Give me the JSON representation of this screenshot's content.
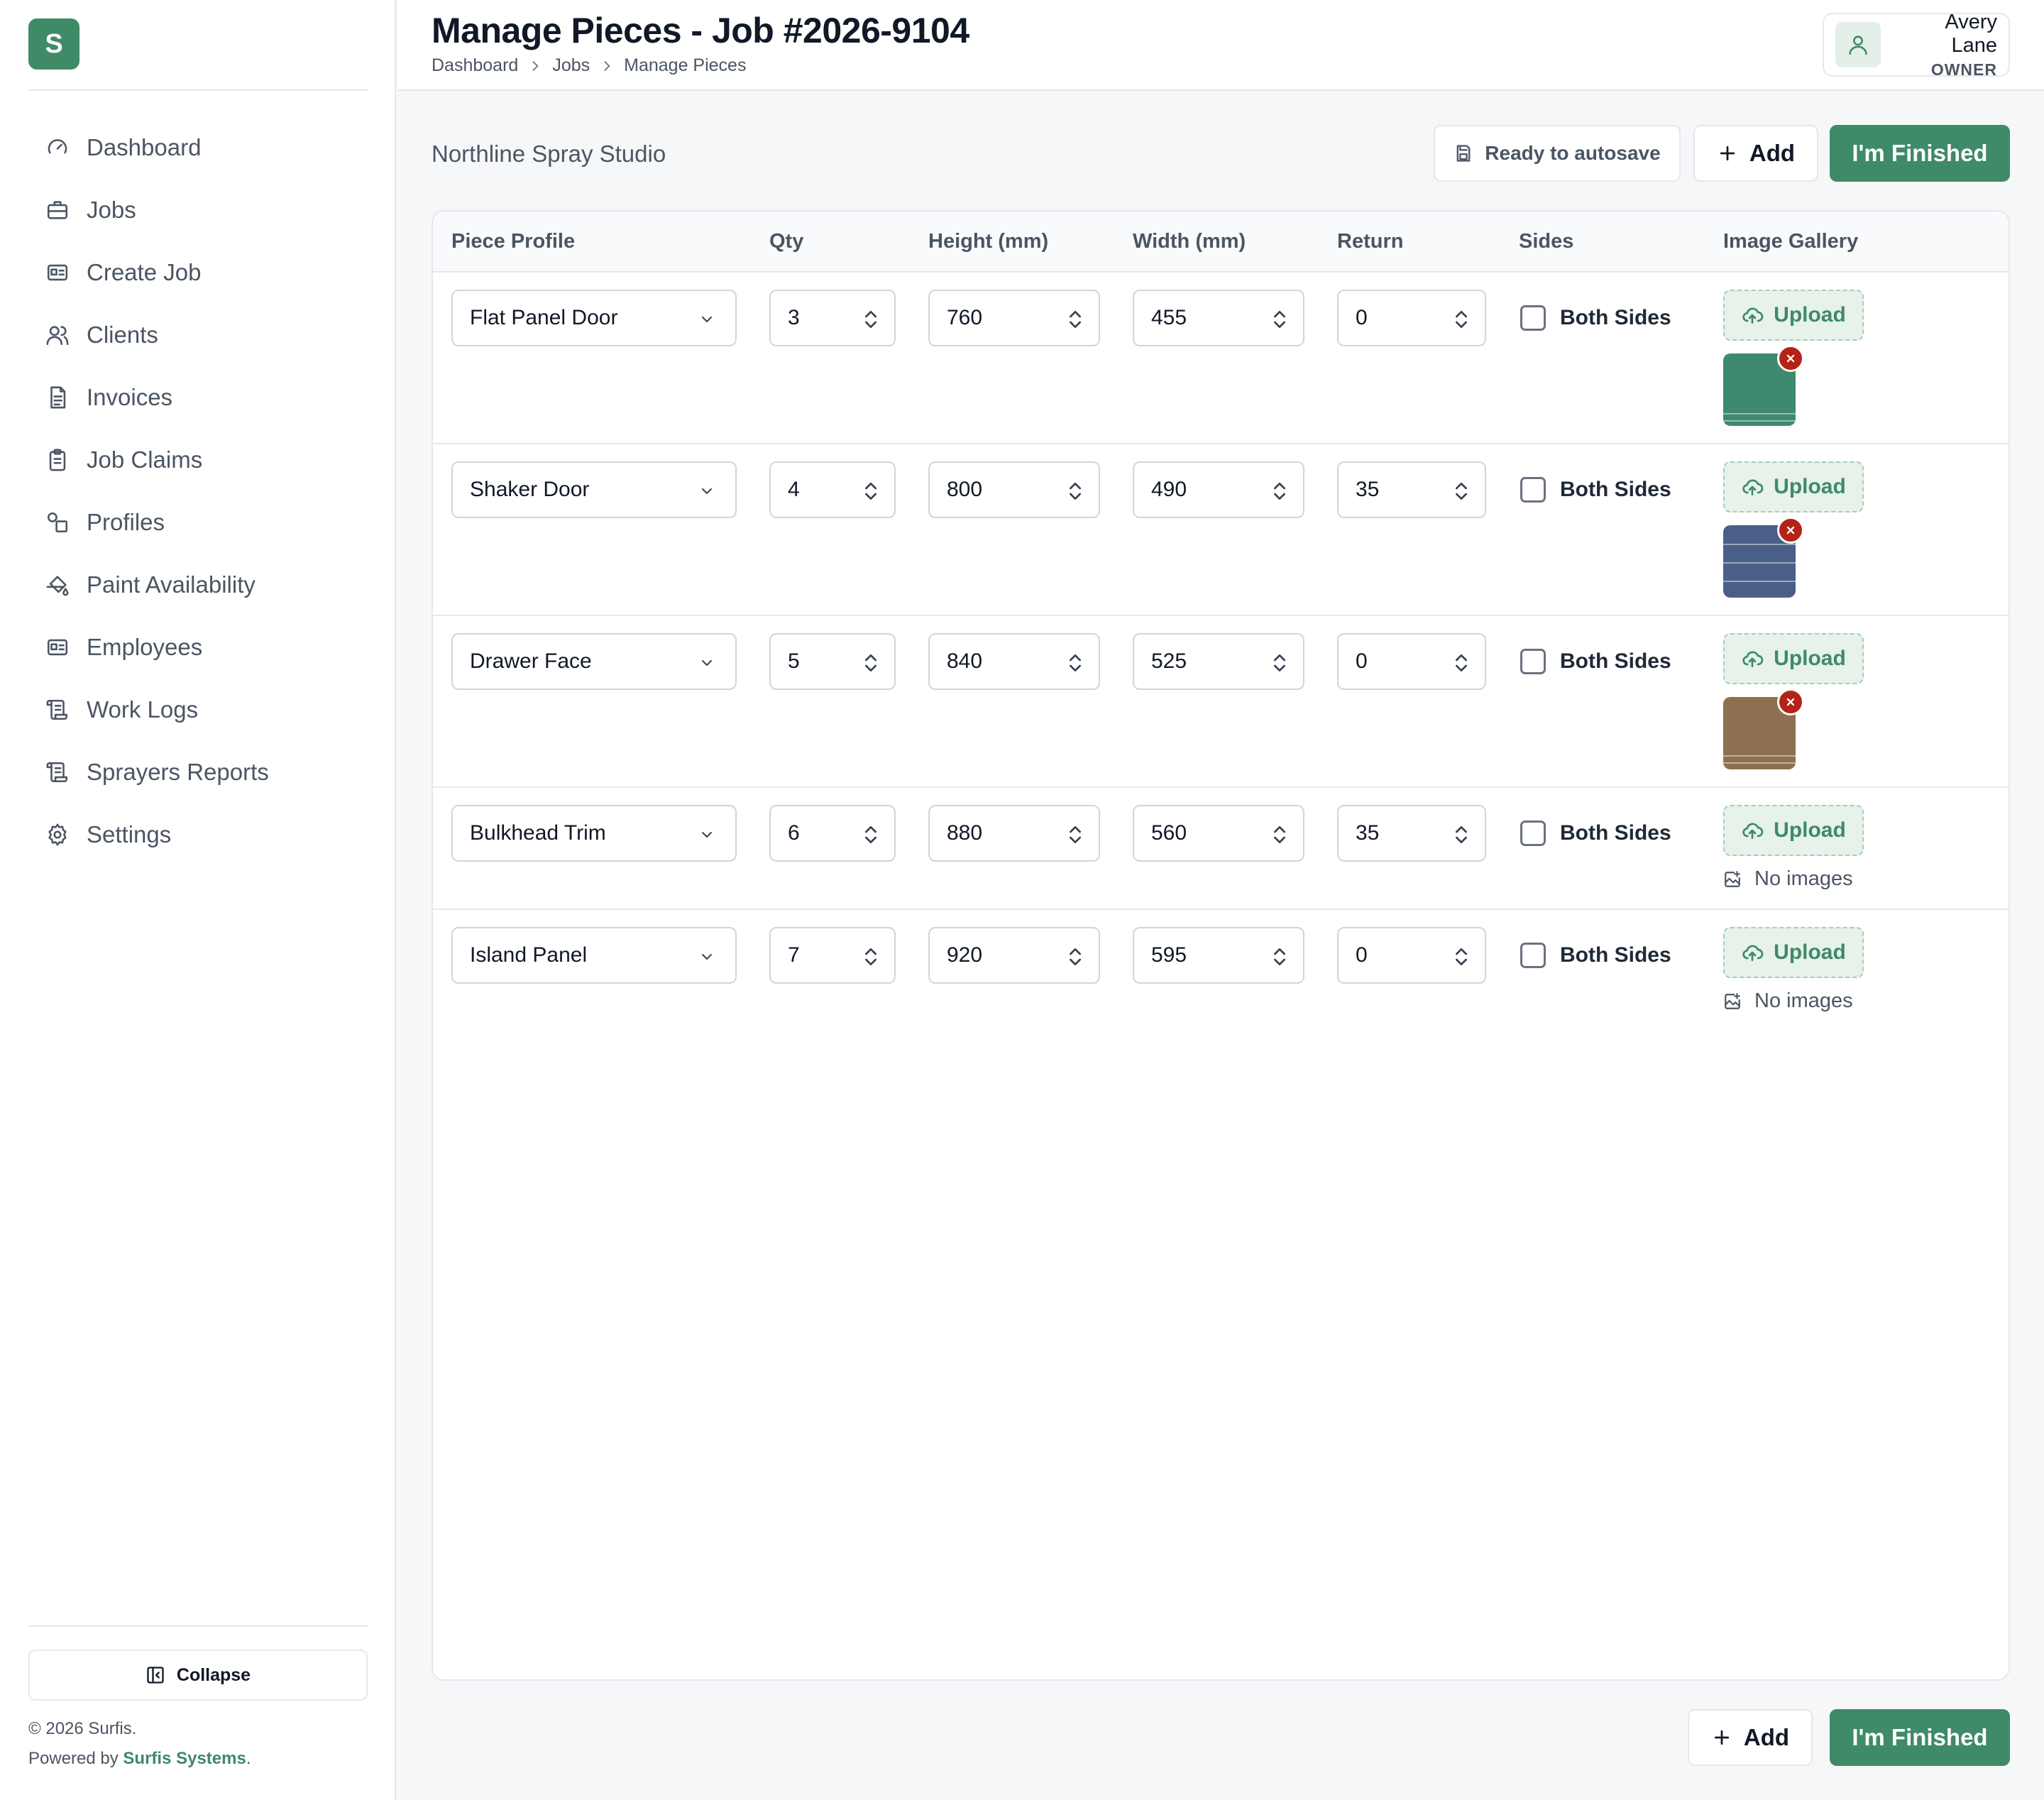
{
  "brand": {
    "logo_letter": "S",
    "accent": "#3f8a67"
  },
  "sidebar": {
    "items": [
      {
        "label": "Dashboard",
        "icon": "gauge-icon"
      },
      {
        "label": "Jobs",
        "icon": "briefcase-icon"
      },
      {
        "label": "Create Job",
        "icon": "id-card-icon"
      },
      {
        "label": "Clients",
        "icon": "users-icon"
      },
      {
        "label": "Invoices",
        "icon": "file-text-icon"
      },
      {
        "label": "Job Claims",
        "icon": "clipboard-icon"
      },
      {
        "label": "Profiles",
        "icon": "shapes-icon"
      },
      {
        "label": "Paint Availability",
        "icon": "paint-bucket-icon"
      },
      {
        "label": "Employees",
        "icon": "id-card-icon"
      },
      {
        "label": "Work Logs",
        "icon": "scroll-icon"
      },
      {
        "label": "Sprayers Reports",
        "icon": "scroll-icon"
      },
      {
        "label": "Settings",
        "icon": "gear-icon"
      }
    ],
    "collapse_label": "Collapse",
    "copyright": "© 2026 Surfis.",
    "powered_prefix": "Powered by",
    "powered_link": "Surfis Systems",
    "powered_suffix": "."
  },
  "header": {
    "title": "Manage Pieces - Job #2026-9104",
    "breadcrumb": [
      "Dashboard",
      "Jobs",
      "Manage Pieces"
    ],
    "user": {
      "name": "Avery Lane",
      "role": "OWNER"
    }
  },
  "toolbar": {
    "studio": "Northline Spray Studio",
    "autosave_label": "Ready to autosave",
    "add_label": "Add",
    "finish_label": "I'm Finished"
  },
  "table": {
    "headers": [
      "Piece Profile",
      "Qty",
      "Height (mm)",
      "Width (mm)",
      "Return",
      "Sides",
      "Image Gallery"
    ],
    "sides_label": "Both Sides",
    "upload_label": "Upload",
    "no_images_label": "No images",
    "rows": [
      {
        "profile": "Flat Panel Door",
        "qty": "3",
        "height": "760",
        "width": "455",
        "return": "0",
        "both_sides": false,
        "image_color": "#3f8a6e"
      },
      {
        "profile": "Shaker Door",
        "qty": "4",
        "height": "800",
        "width": "490",
        "return": "35",
        "both_sides": false,
        "image_color": "#4a5f88"
      },
      {
        "profile": "Drawer Face",
        "qty": "5",
        "height": "840",
        "width": "525",
        "return": "0",
        "both_sides": false,
        "image_color": "#8d7050"
      },
      {
        "profile": "Bulkhead Trim",
        "qty": "6",
        "height": "880",
        "width": "560",
        "return": "35",
        "both_sides": false,
        "image_color": null
      },
      {
        "profile": "Island Panel",
        "qty": "7",
        "height": "920",
        "width": "595",
        "return": "0",
        "both_sides": false,
        "image_color": null
      }
    ]
  },
  "bottom_bar": {
    "add_label": "Add",
    "finish_label": "I'm Finished"
  }
}
